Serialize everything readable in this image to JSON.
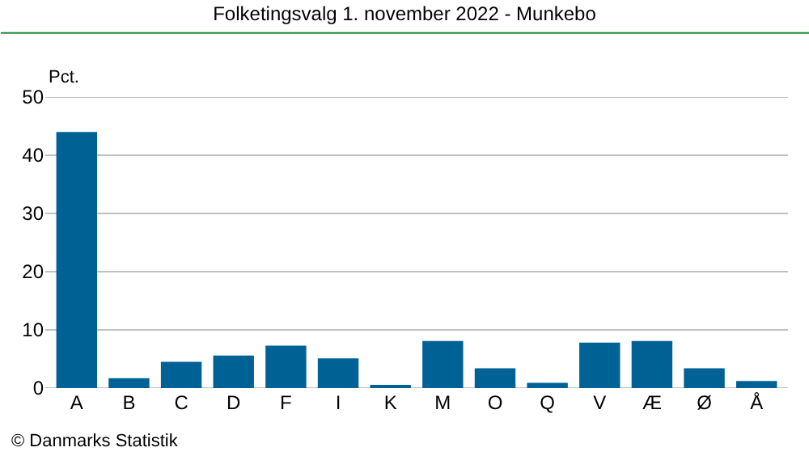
{
  "chart_data": {
    "type": "bar",
    "title": "Folketingsvalg 1. november 2022 - Munkebo",
    "ylabel": "Pct.",
    "categories": [
      "A",
      "B",
      "C",
      "D",
      "F",
      "I",
      "K",
      "M",
      "O",
      "Q",
      "V",
      "Æ",
      "Ø",
      "Å"
    ],
    "values": [
      44.0,
      1.7,
      4.5,
      5.6,
      7.3,
      5.1,
      0.4,
      8.1,
      3.4,
      0.9,
      7.8,
      8.1,
      3.4,
      1.2
    ],
    "color": "#006294",
    "ylim": [
      0,
      50
    ],
    "yticks": [
      0,
      10,
      20,
      30,
      40,
      50
    ],
    "grid": "y",
    "annotations": [
      "© Danmarks Statistik"
    ]
  }
}
